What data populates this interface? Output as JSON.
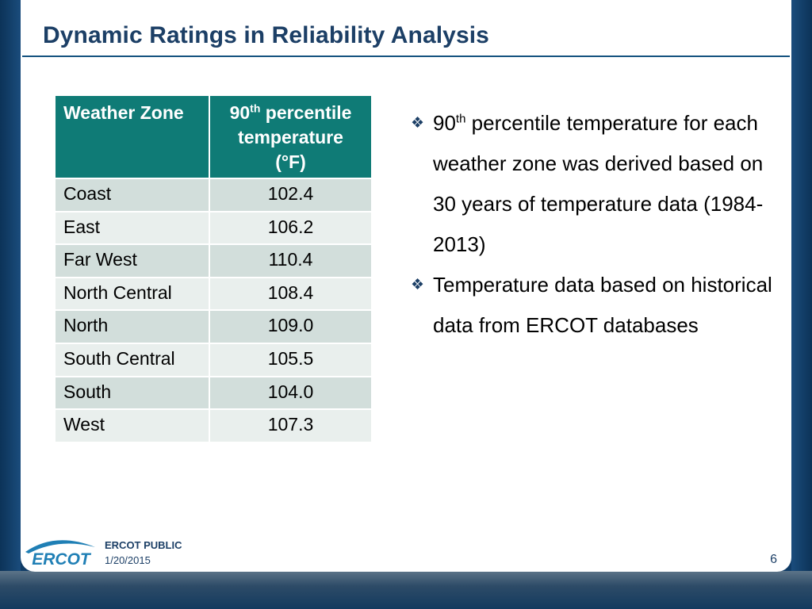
{
  "slide": {
    "title": "Dynamic Ratings in Reliability Analysis",
    "page_number": "6"
  },
  "table": {
    "header_zone": "Weather Zone",
    "header_temp_prefix": "90",
    "header_temp_sup": "th",
    "header_temp_line1_rest": " percentile",
    "header_temp_line2": "temperature",
    "header_temp_line3": "(°F)",
    "rows": [
      {
        "zone": "Coast",
        "temp": "102.4"
      },
      {
        "zone": "East",
        "temp": "106.2"
      },
      {
        "zone": "Far West",
        "temp": "110.4"
      },
      {
        "zone": "North Central",
        "temp": "108.4"
      },
      {
        "zone": "North",
        "temp": "109.0"
      },
      {
        "zone": "South Central",
        "temp": "105.5"
      },
      {
        "zone": "South",
        "temp": "104.0"
      },
      {
        "zone": "West",
        "temp": "107.3"
      }
    ]
  },
  "bullets": {
    "marker": "❖",
    "b1_prefix": "90",
    "b1_sup": "th",
    "b1_rest": " percentile temperature for each weather zone was derived based on 30 years of temperature data (1984-2013)",
    "b2": "Temperature data based on historical data from ERCOT databases"
  },
  "footer": {
    "logo_text": "ERCOT",
    "label": "ERCOT PUBLIC",
    "date": "1/20/2015"
  },
  "colors": {
    "header_teal": "#0f7b76",
    "title_navy": "#1c3f66",
    "frame_blue": "#0f3b66",
    "row_dark": "#d2dedb",
    "row_light": "#e9efed",
    "logo_blue": "#1f7fb5"
  }
}
